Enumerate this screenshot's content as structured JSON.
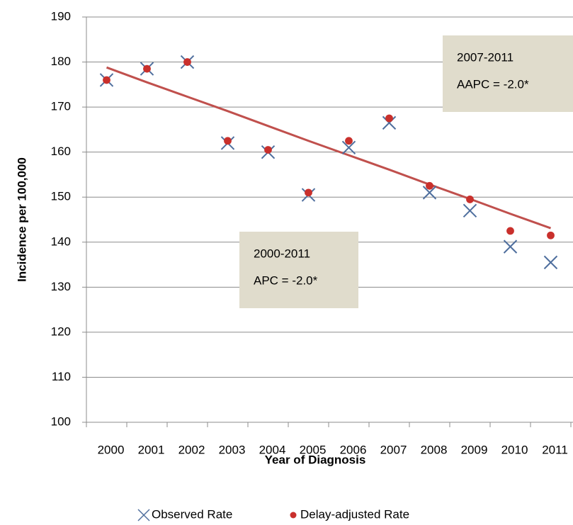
{
  "chart_data": {
    "type": "scatter",
    "x_label": "Year of Diagnosis",
    "y_label": "Incidence  per 100,000",
    "categories": [
      "2000",
      "2001",
      "2002",
      "2003",
      "2004",
      "2005",
      "2006",
      "2007",
      "2008",
      "2009",
      "2010",
      "2011"
    ],
    "series": [
      {
        "name": "Observed Rate",
        "color": "#4f6f9e",
        "marker": "x",
        "values": [
          176,
          178.5,
          180,
          162,
          160,
          150.5,
          161,
          166.5,
          151,
          147,
          139,
          135.5
        ]
      },
      {
        "name": "Delay-adjusted Rate",
        "color": "#c9302c",
        "marker": "dot",
        "values": [
          176,
          178.5,
          180,
          162.5,
          160.5,
          151,
          162.5,
          167.5,
          152.5,
          149.5,
          142.5,
          141.5
        ]
      }
    ],
    "trend_line": {
      "color": "#c0504d",
      "values": [
        178.8,
        175.5,
        172.3,
        169.1,
        165.8,
        162.5,
        159.3,
        156.1,
        152.8,
        149.6,
        146.3,
        143.1
      ]
    },
    "annotations": [
      {
        "lines": [
          "2000-2011",
          "APC = -2.0*"
        ]
      },
      {
        "lines": [
          "2007-2011",
          "AAPC = -2.0*"
        ]
      }
    ],
    "ylim": [
      100,
      190
    ],
    "yticks": [
      100,
      110,
      120,
      130,
      140,
      150,
      160,
      170,
      180,
      190
    ],
    "grid": true,
    "legend": "bottom"
  }
}
